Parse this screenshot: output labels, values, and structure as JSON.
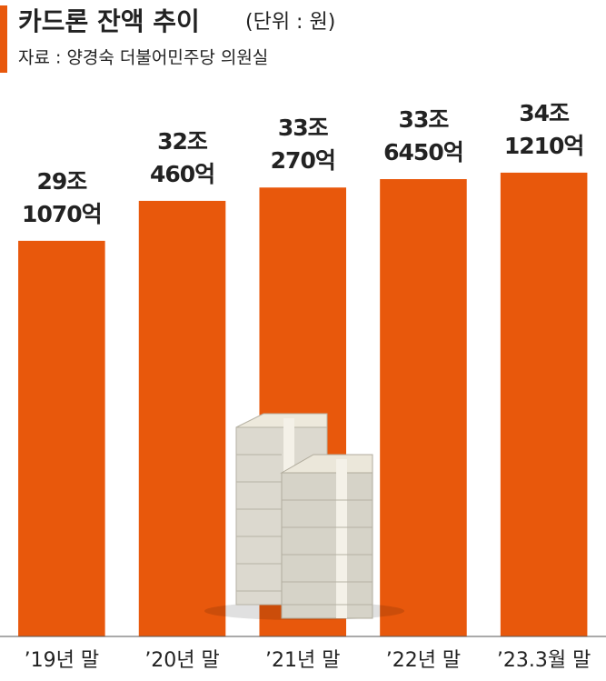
{
  "chart_data": {
    "type": "bar",
    "title": "카드론 잔액 추이",
    "subtitle": "(단위 : 원)",
    "source": "자료 : 양경숙 더불어민주당 의원실",
    "categories": [
      "’19년 말",
      "’20년 말",
      "’21년 말",
      "’22년 말",
      "’23.3월 말"
    ],
    "values": [
      29.107,
      32.046,
      33.027,
      33.645,
      34.121
    ],
    "value_labels": [
      [
        "29조",
        "1070억"
      ],
      [
        "32조",
        "460억"
      ],
      [
        "33조",
        "270억"
      ],
      [
        "33조",
        "6450억"
      ],
      [
        "34조",
        "1210억"
      ]
    ],
    "color": "#e8580c",
    "ylim": [
      0,
      40
    ]
  }
}
